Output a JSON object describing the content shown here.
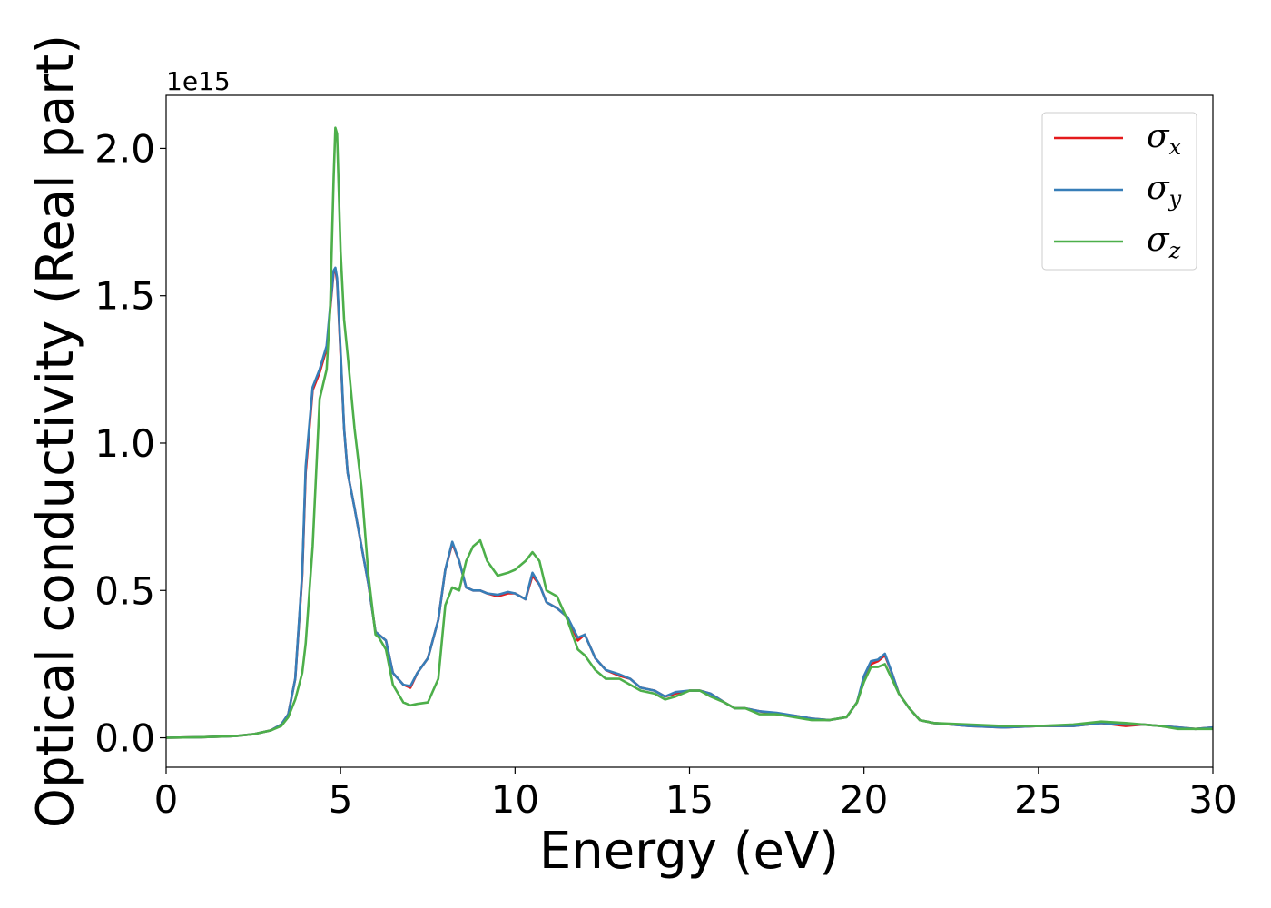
{
  "chart_data": {
    "type": "line",
    "title": "",
    "xlabel": "Energy (eV)",
    "ylabel": "Optical conductivity (Real part)",
    "y_offset_text": "1e15",
    "xlim": [
      0,
      30
    ],
    "ylim": [
      -0.1,
      2.18
    ],
    "xticks": [
      0,
      5,
      10,
      15,
      20,
      25,
      30
    ],
    "xtick_labels": [
      "0",
      "5",
      "10",
      "15",
      "20",
      "25",
      "30"
    ],
    "yticks": [
      0.0,
      0.5,
      1.0,
      1.5,
      2.0
    ],
    "ytick_labels": [
      "0.0",
      "0.5",
      "1.0",
      "1.5",
      "2.0"
    ],
    "grid": false,
    "legend_position": "top-right",
    "series": [
      {
        "name": "σx",
        "symbol": "σ",
        "subscript": "x",
        "color": "#e41a1c",
        "x": [
          0,
          1,
          2,
          2.5,
          3,
          3.3,
          3.5,
          3.7,
          3.9,
          4.0,
          4.2,
          4.4,
          4.6,
          4.7,
          4.8,
          4.85,
          4.9,
          5.0,
          5.1,
          5.2,
          5.4,
          5.6,
          5.8,
          6.0,
          6.1,
          6.3,
          6.5,
          6.8,
          7.0,
          7.2,
          7.5,
          7.8,
          8.0,
          8.2,
          8.4,
          8.6,
          8.8,
          9.0,
          9.2,
          9.5,
          9.8,
          10.0,
          10.3,
          10.5,
          10.7,
          10.9,
          11.2,
          11.5,
          11.8,
          12.0,
          12.3,
          12.6,
          13.0,
          13.3,
          13.6,
          14.0,
          14.3,
          14.6,
          15.0,
          15.3,
          15.6,
          16.0,
          16.3,
          16.6,
          17.0,
          17.5,
          18.0,
          18.5,
          19.0,
          19.5,
          19.8,
          20.0,
          20.2,
          20.4,
          20.6,
          20.8,
          21.0,
          21.3,
          21.6,
          22.0,
          23.0,
          24.0,
          25.0,
          26.0,
          26.8,
          27.5,
          28.0,
          28.5,
          29.0,
          29.5,
          30.0
        ],
        "y": [
          0,
          0.002,
          0.006,
          0.012,
          0.025,
          0.045,
          0.08,
          0.2,
          0.55,
          0.9,
          1.18,
          1.24,
          1.32,
          1.45,
          1.58,
          1.59,
          1.55,
          1.3,
          1.05,
          0.9,
          0.78,
          0.65,
          0.52,
          0.36,
          0.35,
          0.33,
          0.22,
          0.18,
          0.17,
          0.22,
          0.27,
          0.4,
          0.57,
          0.66,
          0.6,
          0.51,
          0.5,
          0.5,
          0.49,
          0.48,
          0.49,
          0.49,
          0.47,
          0.55,
          0.52,
          0.46,
          0.44,
          0.41,
          0.33,
          0.35,
          0.27,
          0.23,
          0.21,
          0.2,
          0.17,
          0.16,
          0.14,
          0.15,
          0.16,
          0.16,
          0.15,
          0.12,
          0.1,
          0.1,
          0.09,
          0.08,
          0.075,
          0.065,
          0.06,
          0.07,
          0.12,
          0.2,
          0.25,
          0.26,
          0.28,
          0.22,
          0.15,
          0.1,
          0.06,
          0.05,
          0.04,
          0.035,
          0.04,
          0.04,
          0.05,
          0.04,
          0.045,
          0.04,
          0.035,
          0.03,
          0.035
        ]
      },
      {
        "name": "σy",
        "symbol": "σ",
        "subscript": "y",
        "color": "#377eb8",
        "x": [
          0,
          1,
          2,
          2.5,
          3,
          3.3,
          3.5,
          3.7,
          3.9,
          4.0,
          4.2,
          4.4,
          4.6,
          4.7,
          4.8,
          4.85,
          4.9,
          5.0,
          5.1,
          5.2,
          5.4,
          5.6,
          5.8,
          6.0,
          6.1,
          6.3,
          6.5,
          6.8,
          7.0,
          7.2,
          7.5,
          7.8,
          8.0,
          8.2,
          8.4,
          8.6,
          8.8,
          9.0,
          9.2,
          9.5,
          9.8,
          10.0,
          10.3,
          10.5,
          10.7,
          10.9,
          11.2,
          11.5,
          11.8,
          12.0,
          12.3,
          12.6,
          13.0,
          13.3,
          13.6,
          14.0,
          14.3,
          14.6,
          15.0,
          15.3,
          15.6,
          16.0,
          16.3,
          16.6,
          17.0,
          17.5,
          18.0,
          18.5,
          19.0,
          19.5,
          19.8,
          20.0,
          20.2,
          20.4,
          20.6,
          20.8,
          21.0,
          21.3,
          21.6,
          22.0,
          23.0,
          24.0,
          25.0,
          26.0,
          26.8,
          27.5,
          28.0,
          28.5,
          29.0,
          29.5,
          30.0
        ],
        "y": [
          0,
          0.002,
          0.006,
          0.012,
          0.025,
          0.045,
          0.08,
          0.2,
          0.56,
          0.92,
          1.19,
          1.25,
          1.33,
          1.46,
          1.585,
          1.595,
          1.56,
          1.31,
          1.05,
          0.9,
          0.78,
          0.65,
          0.52,
          0.36,
          0.35,
          0.33,
          0.22,
          0.18,
          0.175,
          0.22,
          0.27,
          0.4,
          0.57,
          0.665,
          0.6,
          0.51,
          0.5,
          0.5,
          0.49,
          0.485,
          0.495,
          0.49,
          0.47,
          0.56,
          0.52,
          0.46,
          0.44,
          0.41,
          0.34,
          0.35,
          0.27,
          0.23,
          0.215,
          0.2,
          0.17,
          0.16,
          0.14,
          0.155,
          0.16,
          0.16,
          0.15,
          0.12,
          0.1,
          0.1,
          0.09,
          0.085,
          0.075,
          0.065,
          0.06,
          0.07,
          0.12,
          0.21,
          0.26,
          0.265,
          0.285,
          0.22,
          0.15,
          0.1,
          0.06,
          0.05,
          0.04,
          0.035,
          0.04,
          0.04,
          0.05,
          0.045,
          0.045,
          0.04,
          0.035,
          0.03,
          0.035
        ]
      },
      {
        "name": "σz",
        "symbol": "σ",
        "subscript": "z",
        "color": "#4daf4a",
        "x": [
          0,
          1,
          2,
          2.5,
          3,
          3.3,
          3.5,
          3.7,
          3.9,
          4.0,
          4.2,
          4.4,
          4.6,
          4.7,
          4.8,
          4.85,
          4.9,
          5.0,
          5.1,
          5.2,
          5.4,
          5.6,
          5.8,
          6.0,
          6.1,
          6.3,
          6.5,
          6.8,
          7.0,
          7.2,
          7.5,
          7.8,
          8.0,
          8.2,
          8.4,
          8.6,
          8.8,
          9.0,
          9.2,
          9.5,
          9.8,
          10.0,
          10.3,
          10.5,
          10.7,
          10.9,
          11.2,
          11.5,
          11.8,
          12.0,
          12.3,
          12.6,
          13.0,
          13.3,
          13.6,
          14.0,
          14.3,
          14.6,
          15.0,
          15.3,
          15.6,
          16.0,
          16.3,
          16.6,
          17.0,
          17.5,
          18.0,
          18.5,
          19.0,
          19.5,
          19.8,
          20.0,
          20.2,
          20.4,
          20.6,
          20.8,
          21.0,
          21.3,
          21.6,
          22.0,
          23.0,
          24.0,
          25.0,
          26.0,
          26.8,
          27.5,
          28.0,
          28.5,
          29.0,
          29.5,
          30.0
        ],
        "y": [
          0,
          0.002,
          0.006,
          0.012,
          0.025,
          0.04,
          0.07,
          0.13,
          0.22,
          0.32,
          0.65,
          1.15,
          1.25,
          1.45,
          1.9,
          2.07,
          2.05,
          1.65,
          1.42,
          1.3,
          1.05,
          0.85,
          0.55,
          0.35,
          0.34,
          0.3,
          0.18,
          0.12,
          0.11,
          0.115,
          0.12,
          0.2,
          0.45,
          0.51,
          0.5,
          0.6,
          0.65,
          0.67,
          0.6,
          0.55,
          0.56,
          0.57,
          0.6,
          0.63,
          0.6,
          0.5,
          0.48,
          0.4,
          0.3,
          0.28,
          0.23,
          0.2,
          0.2,
          0.18,
          0.16,
          0.15,
          0.13,
          0.14,
          0.16,
          0.16,
          0.14,
          0.12,
          0.1,
          0.1,
          0.08,
          0.08,
          0.07,
          0.06,
          0.06,
          0.07,
          0.12,
          0.19,
          0.24,
          0.24,
          0.25,
          0.2,
          0.15,
          0.1,
          0.06,
          0.05,
          0.045,
          0.04,
          0.04,
          0.045,
          0.055,
          0.05,
          0.045,
          0.04,
          0.03,
          0.03,
          0.03
        ]
      }
    ]
  }
}
